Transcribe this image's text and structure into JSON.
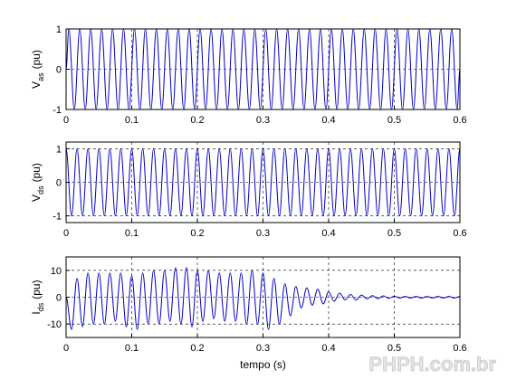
{
  "watermark": "PHPH.com.br",
  "chart_data": [
    {
      "type": "line",
      "ylabel": {
        "main": "V",
        "sub": "as",
        "unit": "(pu)"
      },
      "xlim": [
        0,
        0.6
      ],
      "xticks": [
        0,
        0.1,
        0.2,
        0.3,
        0.4,
        0.5,
        0.6
      ],
      "ylim": [
        -1,
        1
      ],
      "yticks": [
        -1,
        0,
        1
      ],
      "grid": true,
      "x": [
        0,
        0.0042,
        0.0125,
        0.0208,
        0.0292,
        0.0375,
        0.0458,
        0.0542,
        0.0625,
        0.0708,
        0.0792,
        0.0875,
        0.0958,
        0.1042,
        0.1125,
        0.1208,
        0.1292,
        0.1375,
        0.1458,
        0.1542,
        0.1625,
        0.1708,
        0.1792,
        0.1875,
        0.1958,
        0.2042,
        0.2125,
        0.2208,
        0.2292,
        0.2375,
        0.2458,
        0.2542,
        0.2625,
        0.2708,
        0.2792,
        0.2875,
        0.2958,
        0.3042,
        0.3125,
        0.3208,
        0.3292,
        0.3375,
        0.3458,
        0.3542,
        0.3625,
        0.3708,
        0.3792,
        0.3875,
        0.3958,
        0.4042,
        0.4125,
        0.4208,
        0.4292,
        0.4375,
        0.4458,
        0.4542,
        0.4625,
        0.4708,
        0.4792,
        0.4875,
        0.4958,
        0.5042,
        0.5125,
        0.5208,
        0.5292,
        0.5375,
        0.5458,
        0.5542,
        0.5625,
        0.5708,
        0.5792,
        0.5875,
        0.5958,
        0.6
      ],
      "series": [
        {
          "color": "#0000c8",
          "values": [
            0,
            1,
            -1,
            1,
            -1,
            1,
            -1,
            1,
            -1,
            1,
            -1,
            1,
            -1,
            1,
            -1,
            1,
            -1,
            1,
            -1,
            1,
            -1,
            1,
            -1,
            1,
            -1,
            1,
            -1,
            1,
            -1,
            1,
            -1,
            1,
            -1,
            1,
            -1,
            1,
            -1,
            1,
            -1,
            1,
            -1,
            1,
            -1,
            1,
            -1,
            1,
            -1,
            1,
            -1,
            1,
            -1,
            1,
            -1,
            1,
            -1,
            1,
            -1,
            1,
            -1,
            1,
            -1,
            1,
            -1,
            1,
            -1,
            1,
            -1,
            1,
            -1,
            1,
            -1,
            1,
            -1,
            0
          ]
        }
      ]
    },
    {
      "type": "line",
      "ylabel": {
        "main": "V",
        "sub": "ds",
        "unit": "(pu)"
      },
      "xlim": [
        0,
        0.6
      ],
      "xticks": [
        0,
        0.1,
        0.2,
        0.3,
        0.4,
        0.5,
        0.6
      ],
      "ylim": [
        -1.2,
        1.2
      ],
      "yticks": [
        -1,
        0,
        1
      ],
      "grid": true,
      "x": [
        0,
        0.0083,
        0.0167,
        0.025,
        0.0333,
        0.0417,
        0.05,
        0.0583,
        0.0667,
        0.075,
        0.0833,
        0.0917,
        0.1,
        0.1083,
        0.1167,
        0.125,
        0.1333,
        0.1417,
        0.15,
        0.1583,
        0.1667,
        0.175,
        0.1833,
        0.1917,
        0.2,
        0.2083,
        0.2167,
        0.225,
        0.2333,
        0.2417,
        0.25,
        0.2583,
        0.2667,
        0.275,
        0.2833,
        0.2917,
        0.3,
        0.3083,
        0.3167,
        0.325,
        0.3333,
        0.3417,
        0.35,
        0.3583,
        0.3667,
        0.375,
        0.3833,
        0.3917,
        0.4,
        0.4083,
        0.4167,
        0.425,
        0.4333,
        0.4417,
        0.45,
        0.4583,
        0.4667,
        0.475,
        0.4833,
        0.4917,
        0.5,
        0.5083,
        0.5167,
        0.525,
        0.5333,
        0.5417,
        0.55,
        0.5583,
        0.5667,
        0.575,
        0.5833,
        0.5917,
        0.6
      ],
      "series": [
        {
          "color": "#0000c8",
          "values": [
            1,
            -1,
            1,
            -1,
            1,
            -1,
            1,
            -1,
            1,
            -1,
            1,
            -1,
            1,
            -1,
            1,
            -1,
            1,
            -1,
            1,
            -1,
            1,
            -1,
            1,
            -1,
            1,
            -1,
            1,
            -1,
            1,
            -1,
            1,
            -1,
            1,
            -1,
            1,
            -1,
            1,
            -1,
            1,
            -1,
            1,
            -1,
            1,
            -1,
            1,
            -1,
            1,
            -1,
            1,
            -1,
            1,
            -1,
            1,
            -1,
            1,
            -1,
            1,
            -1,
            1,
            -1,
            1,
            -1,
            1,
            -1,
            1,
            -1,
            1,
            -1,
            1,
            -1,
            1,
            -1,
            1
          ]
        }
      ]
    },
    {
      "type": "line",
      "ylabel": {
        "main": "I",
        "sub": "ds",
        "unit": "(pu)"
      },
      "xlabel": "tempo (s)",
      "xlim": [
        0,
        0.6
      ],
      "xticks": [
        0,
        0.1,
        0.2,
        0.3,
        0.4,
        0.5,
        0.6
      ],
      "ylim": [
        -15,
        15
      ],
      "yticks": [
        -10,
        0,
        10
      ],
      "grid": true,
      "x": [
        0,
        0.0083,
        0.0167,
        0.025,
        0.0333,
        0.0417,
        0.05,
        0.0583,
        0.0667,
        0.075,
        0.0833,
        0.0917,
        0.1,
        0.1083,
        0.1167,
        0.125,
        0.1333,
        0.1417,
        0.15,
        0.1583,
        0.1667,
        0.175,
        0.1833,
        0.1917,
        0.2,
        0.2083,
        0.2167,
        0.225,
        0.2333,
        0.2417,
        0.25,
        0.2583,
        0.2667,
        0.275,
        0.2833,
        0.2917,
        0.3,
        0.3083,
        0.3167,
        0.325,
        0.3333,
        0.3417,
        0.35,
        0.3583,
        0.3667,
        0.375,
        0.3833,
        0.3917,
        0.4,
        0.4083,
        0.4167,
        0.425,
        0.4333,
        0.4417,
        0.45,
        0.4583,
        0.4667,
        0.475,
        0.4833,
        0.4917,
        0.5,
        0.5083,
        0.5167,
        0.525,
        0.5333,
        0.5417,
        0.55,
        0.5583,
        0.5667,
        0.575,
        0.5833,
        0.5917,
        0.6
      ],
      "series": [
        {
          "color": "#0000c8",
          "values": [
            0,
            -12,
            7,
            -11,
            9,
            -10,
            9,
            -10,
            9,
            -9,
            9,
            -11,
            8,
            -12,
            9,
            -10,
            10,
            -10,
            10,
            -9,
            11,
            -10,
            11,
            -11,
            10,
            -9,
            10,
            -8,
            9,
            -9,
            9,
            -9,
            9,
            -10,
            10,
            -10,
            9,
            -12,
            7,
            -10,
            5,
            -7,
            4,
            -4,
            3.5,
            -3,
            3,
            -2.5,
            2,
            -1.5,
            1.5,
            -1,
            1,
            -1,
            0.8,
            -0.6,
            0.6,
            -0.5,
            0.5,
            -0.4,
            0.4,
            -0.3,
            0.3,
            -0.3,
            0.3,
            -0.3,
            0.3,
            -0.3,
            0.3,
            -0.3,
            0.3,
            -0.3,
            0.3
          ]
        }
      ]
    }
  ]
}
